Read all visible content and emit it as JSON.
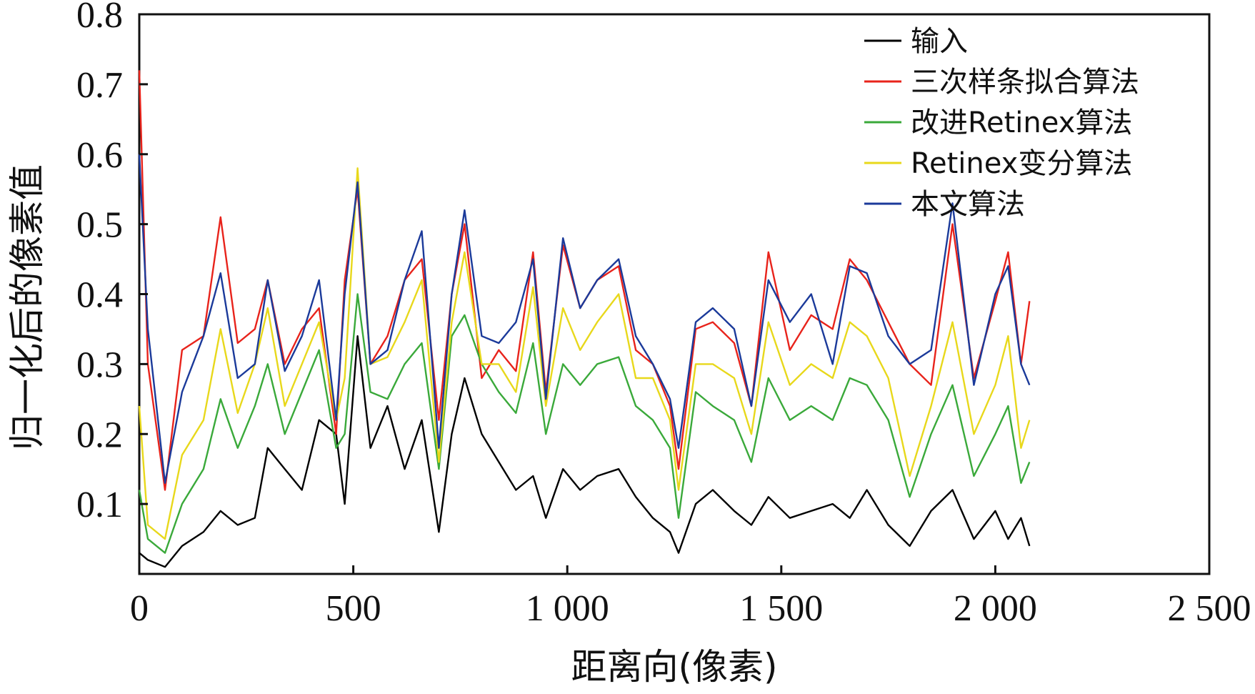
{
  "chart_data": {
    "type": "line",
    "xlabel": "距离向(像素)",
    "ylabel": "归一化后的像素值",
    "xlim": [
      0,
      2500
    ],
    "ylim": [
      0,
      0.8
    ],
    "x_ticks": [
      0,
      500,
      1000,
      1500,
      2000,
      2500
    ],
    "x_tick_labels": [
      "0",
      "500",
      "1 000",
      "1 500",
      "2 000",
      "2 500"
    ],
    "y_ticks": [
      0.1,
      0.2,
      0.3,
      0.4,
      0.5,
      0.6,
      0.7,
      0.8
    ],
    "y_tick_labels": [
      "0.1",
      "0.2",
      "0.3",
      "0.4",
      "0.5",
      "0.6",
      "0.7",
      "0.8"
    ],
    "grid": false,
    "legend_position": "top-right",
    "x": [
      0,
      20,
      60,
      100,
      150,
      190,
      230,
      270,
      300,
      340,
      380,
      420,
      460,
      480,
      510,
      540,
      580,
      620,
      660,
      700,
      730,
      760,
      800,
      840,
      880,
      920,
      950,
      990,
      1030,
      1070,
      1120,
      1160,
      1200,
      1240,
      1260,
      1300,
      1340,
      1390,
      1430,
      1470,
      1520,
      1570,
      1620,
      1660,
      1700,
      1750,
      1800,
      1850,
      1900,
      1950,
      2000,
      2030,
      2060,
      2080
    ],
    "series": [
      {
        "name": "输入",
        "color": "#000000",
        "values": [
          0.03,
          0.02,
          0.01,
          0.04,
          0.06,
          0.09,
          0.07,
          0.08,
          0.18,
          0.15,
          0.12,
          0.22,
          0.2,
          0.1,
          0.34,
          0.18,
          0.24,
          0.15,
          0.22,
          0.06,
          0.2,
          0.28,
          0.2,
          0.16,
          0.12,
          0.14,
          0.08,
          0.15,
          0.12,
          0.14,
          0.15,
          0.11,
          0.08,
          0.06,
          0.03,
          0.1,
          0.12,
          0.09,
          0.07,
          0.11,
          0.08,
          0.09,
          0.1,
          0.08,
          0.12,
          0.07,
          0.04,
          0.09,
          0.12,
          0.05,
          0.09,
          0.05,
          0.08,
          0.04
        ]
      },
      {
        "name": "三次样条拟合算法",
        "color": "#e8231b",
        "values": [
          0.72,
          0.3,
          0.12,
          0.32,
          0.34,
          0.51,
          0.33,
          0.35,
          0.42,
          0.3,
          0.35,
          0.38,
          0.2,
          0.42,
          0.55,
          0.3,
          0.34,
          0.42,
          0.45,
          0.22,
          0.4,
          0.5,
          0.28,
          0.32,
          0.29,
          0.46,
          0.26,
          0.47,
          0.38,
          0.42,
          0.44,
          0.32,
          0.3,
          0.24,
          0.15,
          0.35,
          0.36,
          0.33,
          0.24,
          0.46,
          0.32,
          0.37,
          0.35,
          0.45,
          0.42,
          0.36,
          0.3,
          0.27,
          0.5,
          0.28,
          0.39,
          0.46,
          0.3,
          0.39
        ]
      },
      {
        "name": "改进Retinex算法",
        "color": "#3aa93a",
        "values": [
          0.12,
          0.05,
          0.03,
          0.1,
          0.15,
          0.25,
          0.18,
          0.24,
          0.3,
          0.2,
          0.26,
          0.32,
          0.18,
          0.2,
          0.4,
          0.26,
          0.25,
          0.3,
          0.33,
          0.15,
          0.34,
          0.37,
          0.3,
          0.26,
          0.23,
          0.33,
          0.2,
          0.3,
          0.27,
          0.3,
          0.31,
          0.24,
          0.22,
          0.18,
          0.08,
          0.26,
          0.24,
          0.22,
          0.16,
          0.28,
          0.22,
          0.24,
          0.22,
          0.28,
          0.27,
          0.22,
          0.11,
          0.2,
          0.27,
          0.14,
          0.2,
          0.24,
          0.13,
          0.16
        ]
      },
      {
        "name": "Retinex变分算法",
        "color": "#e8d81b",
        "values": [
          0.24,
          0.07,
          0.05,
          0.17,
          0.22,
          0.35,
          0.23,
          0.3,
          0.38,
          0.24,
          0.3,
          0.36,
          0.22,
          0.28,
          0.58,
          0.3,
          0.31,
          0.36,
          0.42,
          0.16,
          0.36,
          0.46,
          0.3,
          0.3,
          0.26,
          0.41,
          0.24,
          0.38,
          0.32,
          0.36,
          0.4,
          0.28,
          0.28,
          0.22,
          0.12,
          0.3,
          0.3,
          0.28,
          0.2,
          0.36,
          0.27,
          0.3,
          0.28,
          0.36,
          0.34,
          0.28,
          0.14,
          0.24,
          0.36,
          0.2,
          0.27,
          0.34,
          0.18,
          0.22
        ]
      },
      {
        "name": "本文算法",
        "color": "#1b3a9a",
        "values": [
          0.6,
          0.35,
          0.13,
          0.26,
          0.34,
          0.43,
          0.28,
          0.3,
          0.42,
          0.29,
          0.34,
          0.42,
          0.22,
          0.4,
          0.56,
          0.3,
          0.32,
          0.42,
          0.49,
          0.18,
          0.4,
          0.52,
          0.34,
          0.33,
          0.36,
          0.45,
          0.25,
          0.48,
          0.38,
          0.42,
          0.45,
          0.34,
          0.3,
          0.25,
          0.18,
          0.36,
          0.38,
          0.35,
          0.24,
          0.42,
          0.36,
          0.4,
          0.3,
          0.44,
          0.43,
          0.34,
          0.3,
          0.32,
          0.53,
          0.27,
          0.4,
          0.44,
          0.3,
          0.27
        ]
      }
    ]
  }
}
